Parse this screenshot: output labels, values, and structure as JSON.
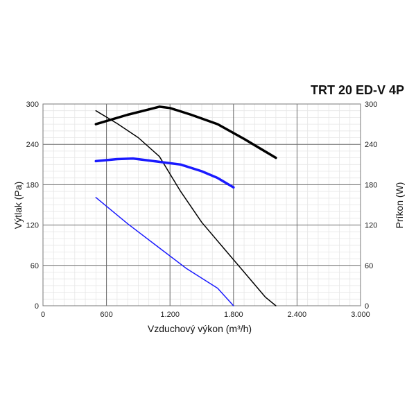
{
  "chart_data": {
    "type": "line",
    "title": "TRT 20 ED-V 4P",
    "xlabel": "Vzduchový výkon (m³/h)",
    "ylabel": "Výtlak (Pa)",
    "y2label": "Príkon (W)",
    "xlim": [
      0,
      3000
    ],
    "ylim": [
      0,
      300
    ],
    "y2lim": [
      0,
      300
    ],
    "x_ticks": [
      0,
      600,
      1200,
      1800,
      2400,
      3000
    ],
    "x_tick_labels": [
      "0",
      "600",
      "1.200",
      "1.800",
      "2.400",
      "3.000"
    ],
    "y_ticks": [
      0,
      60,
      120,
      180,
      240,
      300
    ],
    "y_tick_labels": [
      "0",
      "60",
      "120",
      "180",
      "240",
      "300"
    ],
    "y2_ticks": [
      0,
      60,
      120,
      180,
      240,
      300
    ],
    "y2_tick_labels": [
      "0",
      "60",
      "120",
      "180",
      "240",
      "300"
    ],
    "grid": true,
    "series": [
      {
        "axis": "y2",
        "color": "#000000",
        "weight": "thick",
        "points": [
          [
            500,
            270
          ],
          [
            800,
            284
          ],
          [
            1000,
            292
          ],
          [
            1100,
            296
          ],
          [
            1200,
            294
          ],
          [
            1400,
            284
          ],
          [
            1650,
            270
          ],
          [
            1900,
            248
          ],
          [
            2200,
            220
          ]
        ]
      },
      {
        "axis": "y",
        "color": "#000000",
        "weight": "thin",
        "points": [
          [
            500,
            290
          ],
          [
            700,
            271
          ],
          [
            900,
            250
          ],
          [
            1100,
            222
          ],
          [
            1300,
            170
          ],
          [
            1500,
            124
          ],
          [
            1700,
            87
          ],
          [
            1900,
            50
          ],
          [
            2100,
            13
          ],
          [
            2200,
            0
          ]
        ]
      },
      {
        "axis": "y2",
        "color": "#1a1aff",
        "weight": "thick",
        "points": [
          [
            500,
            215
          ],
          [
            700,
            218
          ],
          [
            850,
            219
          ],
          [
            1000,
            216
          ],
          [
            1300,
            210
          ],
          [
            1500,
            200
          ],
          [
            1650,
            190
          ],
          [
            1800,
            176
          ]
        ]
      },
      {
        "axis": "y",
        "color": "#1a1aff",
        "weight": "thin",
        "points": [
          [
            500,
            161
          ],
          [
            800,
            122
          ],
          [
            1100,
            86
          ],
          [
            1350,
            56
          ],
          [
            1650,
            26
          ],
          [
            1800,
            0
          ]
        ]
      }
    ]
  }
}
